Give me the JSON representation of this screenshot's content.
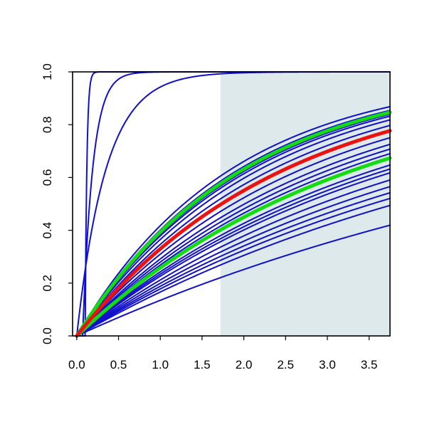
{
  "chart_data": {
    "type": "line",
    "title": "",
    "xlabel": "",
    "ylabel": "",
    "xlim": [
      -0.05,
      3.75
    ],
    "ylim": [
      0,
      1
    ],
    "grid": false,
    "legend": "none",
    "x_ticks": [
      "0.0",
      "0.5",
      "1.0",
      "1.5",
      "2.0",
      "2.5",
      "3.0",
      "3.5"
    ],
    "y_ticks": [
      "0.0",
      "0.2",
      "0.4",
      "0.6",
      "0.8",
      "1.0"
    ],
    "shaded_region": {
      "x_from": 1.72,
      "x_to": 3.75,
      "color": "#dde9ea"
    },
    "colors": {
      "blue": "#1010cc",
      "red": "#ee1111",
      "green": "#11dd11",
      "shade": "#dde9ea"
    },
    "series_rule": "cumulative curves y = 1 - exp(-x/scale); offset curves start rising at given x",
    "series": [
      {
        "color": "blue",
        "scale": 0.02,
        "offset": 0.1,
        "label_y_at_3_7": 1.0
      },
      {
        "color": "blue",
        "scale": 0.12,
        "offset": 0.07,
        "label_y_at_3_7": 1.0
      },
      {
        "color": "blue",
        "scale": 0.35,
        "offset": 0.0,
        "label_y_at_3_7": 1.0
      },
      {
        "color": "blue",
        "scale": 1.85,
        "offset": 0.0,
        "label_y_at_3_7": 0.94
      },
      {
        "color": "blue",
        "scale": 1.95,
        "offset": 0.0,
        "label_y_at_3_7": 0.9
      },
      {
        "color": "blue",
        "scale": 2.0,
        "offset": 0.0,
        "label_y_at_3_7": 0.89
      },
      {
        "color": "blue",
        "scale": 2.05,
        "offset": 0.0,
        "label_y_at_3_7": 0.88
      },
      {
        "color": "blue",
        "scale": 2.1,
        "offset": 0.0,
        "label_y_at_3_7": 0.87
      },
      {
        "color": "blue",
        "scale": 2.2,
        "offset": 0.0,
        "label_y_at_3_7": 0.86
      },
      {
        "color": "blue",
        "scale": 2.35,
        "offset": 0.0,
        "label_y_at_3_7": 0.83
      },
      {
        "color": "blue",
        "scale": 2.5,
        "offset": 0.0,
        "label_y_at_3_7": 0.81
      },
      {
        "color": "blue",
        "scale": 2.7,
        "offset": 0.0,
        "label_y_at_3_7": 0.78
      },
      {
        "color": "blue",
        "scale": 2.9,
        "offset": 0.0,
        "label_y_at_3_7": 0.75
      },
      {
        "color": "blue",
        "scale": 3.05,
        "offset": 0.0,
        "label_y_at_3_7": 0.73
      },
      {
        "color": "blue",
        "scale": 3.2,
        "offset": 0.0,
        "label_y_at_3_7": 0.71
      },
      {
        "color": "blue",
        "scale": 3.35,
        "offset": 0.0,
        "label_y_at_3_7": 0.69
      },
      {
        "color": "blue",
        "scale": 3.6,
        "offset": 0.0,
        "label_y_at_3_7": 0.66
      },
      {
        "color": "blue",
        "scale": 3.75,
        "offset": 0.0,
        "label_y_at_3_7": 0.64
      },
      {
        "color": "blue",
        "scale": 3.9,
        "offset": 0.0,
        "label_y_at_3_7": 0.62
      },
      {
        "color": "blue",
        "scale": 4.2,
        "offset": 0.0,
        "label_y_at_3_7": 0.59
      },
      {
        "color": "blue",
        "scale": 4.5,
        "offset": 0.0,
        "label_y_at_3_7": 0.56
      },
      {
        "color": "blue",
        "scale": 4.8,
        "offset": 0.0,
        "label_y_at_3_7": 0.54
      },
      {
        "color": "blue",
        "scale": 5.1,
        "offset": 0.0,
        "label_y_at_3_7": 0.52
      },
      {
        "color": "blue",
        "scale": 5.5,
        "offset": 0.0,
        "label_y_at_3_7": 0.49
      },
      {
        "color": "blue",
        "scale": 6.9,
        "offset": 0.0,
        "label_y_at_3_7": 0.42
      },
      {
        "color": "green",
        "scale": 2.0,
        "offset": 0.0,
        "label_y_at_3_7": 0.84
      },
      {
        "color": "red",
        "scale": 2.5,
        "offset": 0.0,
        "label_y_at_3_7": 0.77
      },
      {
        "color": "green",
        "scale": 3.35,
        "offset": 0.0,
        "label_y_at_3_7": 0.67
      }
    ]
  }
}
